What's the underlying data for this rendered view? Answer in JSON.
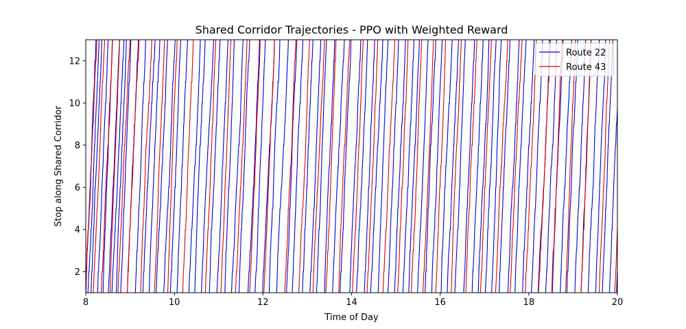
{
  "chart_data": {
    "type": "line",
    "title": "Shared Corridor Trajectories - PPO with Weighted Reward",
    "xlabel": "Time of Day",
    "ylabel": "Stop along Shared Corridor",
    "xlim": [
      8,
      20
    ],
    "ylim": [
      1,
      13
    ],
    "xticks": [
      "8",
      "10",
      "12",
      "14",
      "16",
      "18",
      "20"
    ],
    "yticks": [
      "2",
      "4",
      "6",
      "8",
      "10",
      "12"
    ],
    "grid": false,
    "legend_position": "top-right",
    "series": [
      {
        "name": "Route 22",
        "color": "#0000cc",
        "trip_start_times": [
          8.0,
          8.05,
          8.12,
          8.27,
          8.39,
          8.51,
          8.59,
          8.69,
          8.79,
          8.94,
          9.12,
          9.29,
          9.43,
          9.59,
          9.76,
          9.91,
          10.06,
          10.33,
          10.46,
          10.61,
          10.79,
          10.96,
          11.14,
          11.29,
          11.46,
          11.66,
          11.82,
          11.99,
          12.14,
          12.31,
          12.53,
          12.66,
          12.89,
          13.06,
          13.21,
          13.39,
          13.57,
          13.74,
          13.96,
          14.11,
          14.29,
          14.43,
          14.6,
          14.82,
          14.97,
          15.16,
          15.29,
          15.49,
          15.66,
          15.81,
          16.02,
          16.16,
          16.33,
          16.53,
          16.72,
          16.86,
          17.02,
          17.16,
          17.33,
          17.53,
          17.69,
          17.86,
          18.06,
          18.21,
          18.38,
          18.53,
          18.71,
          18.86,
          19.04,
          19.18,
          19.34,
          19.51,
          19.66,
          19.82,
          19.98
        ]
      },
      {
        "name": "Route 43",
        "color": "#dd0000",
        "trip_start_times": [
          8.0,
          8.17,
          8.35,
          8.55,
          8.73,
          8.94,
          9.24,
          9.55,
          9.85,
          10.19,
          10.7,
          11.05,
          11.38,
          11.7,
          12.02,
          12.49,
          12.81,
          13.13,
          13.42,
          13.71,
          14.02,
          14.35,
          14.71,
          15.04,
          15.35,
          15.61,
          15.9,
          16.25,
          16.58,
          16.91,
          17.25,
          17.58,
          17.92,
          18.22,
          18.52,
          18.83,
          19.18,
          19.59,
          19.94
        ]
      }
    ]
  }
}
